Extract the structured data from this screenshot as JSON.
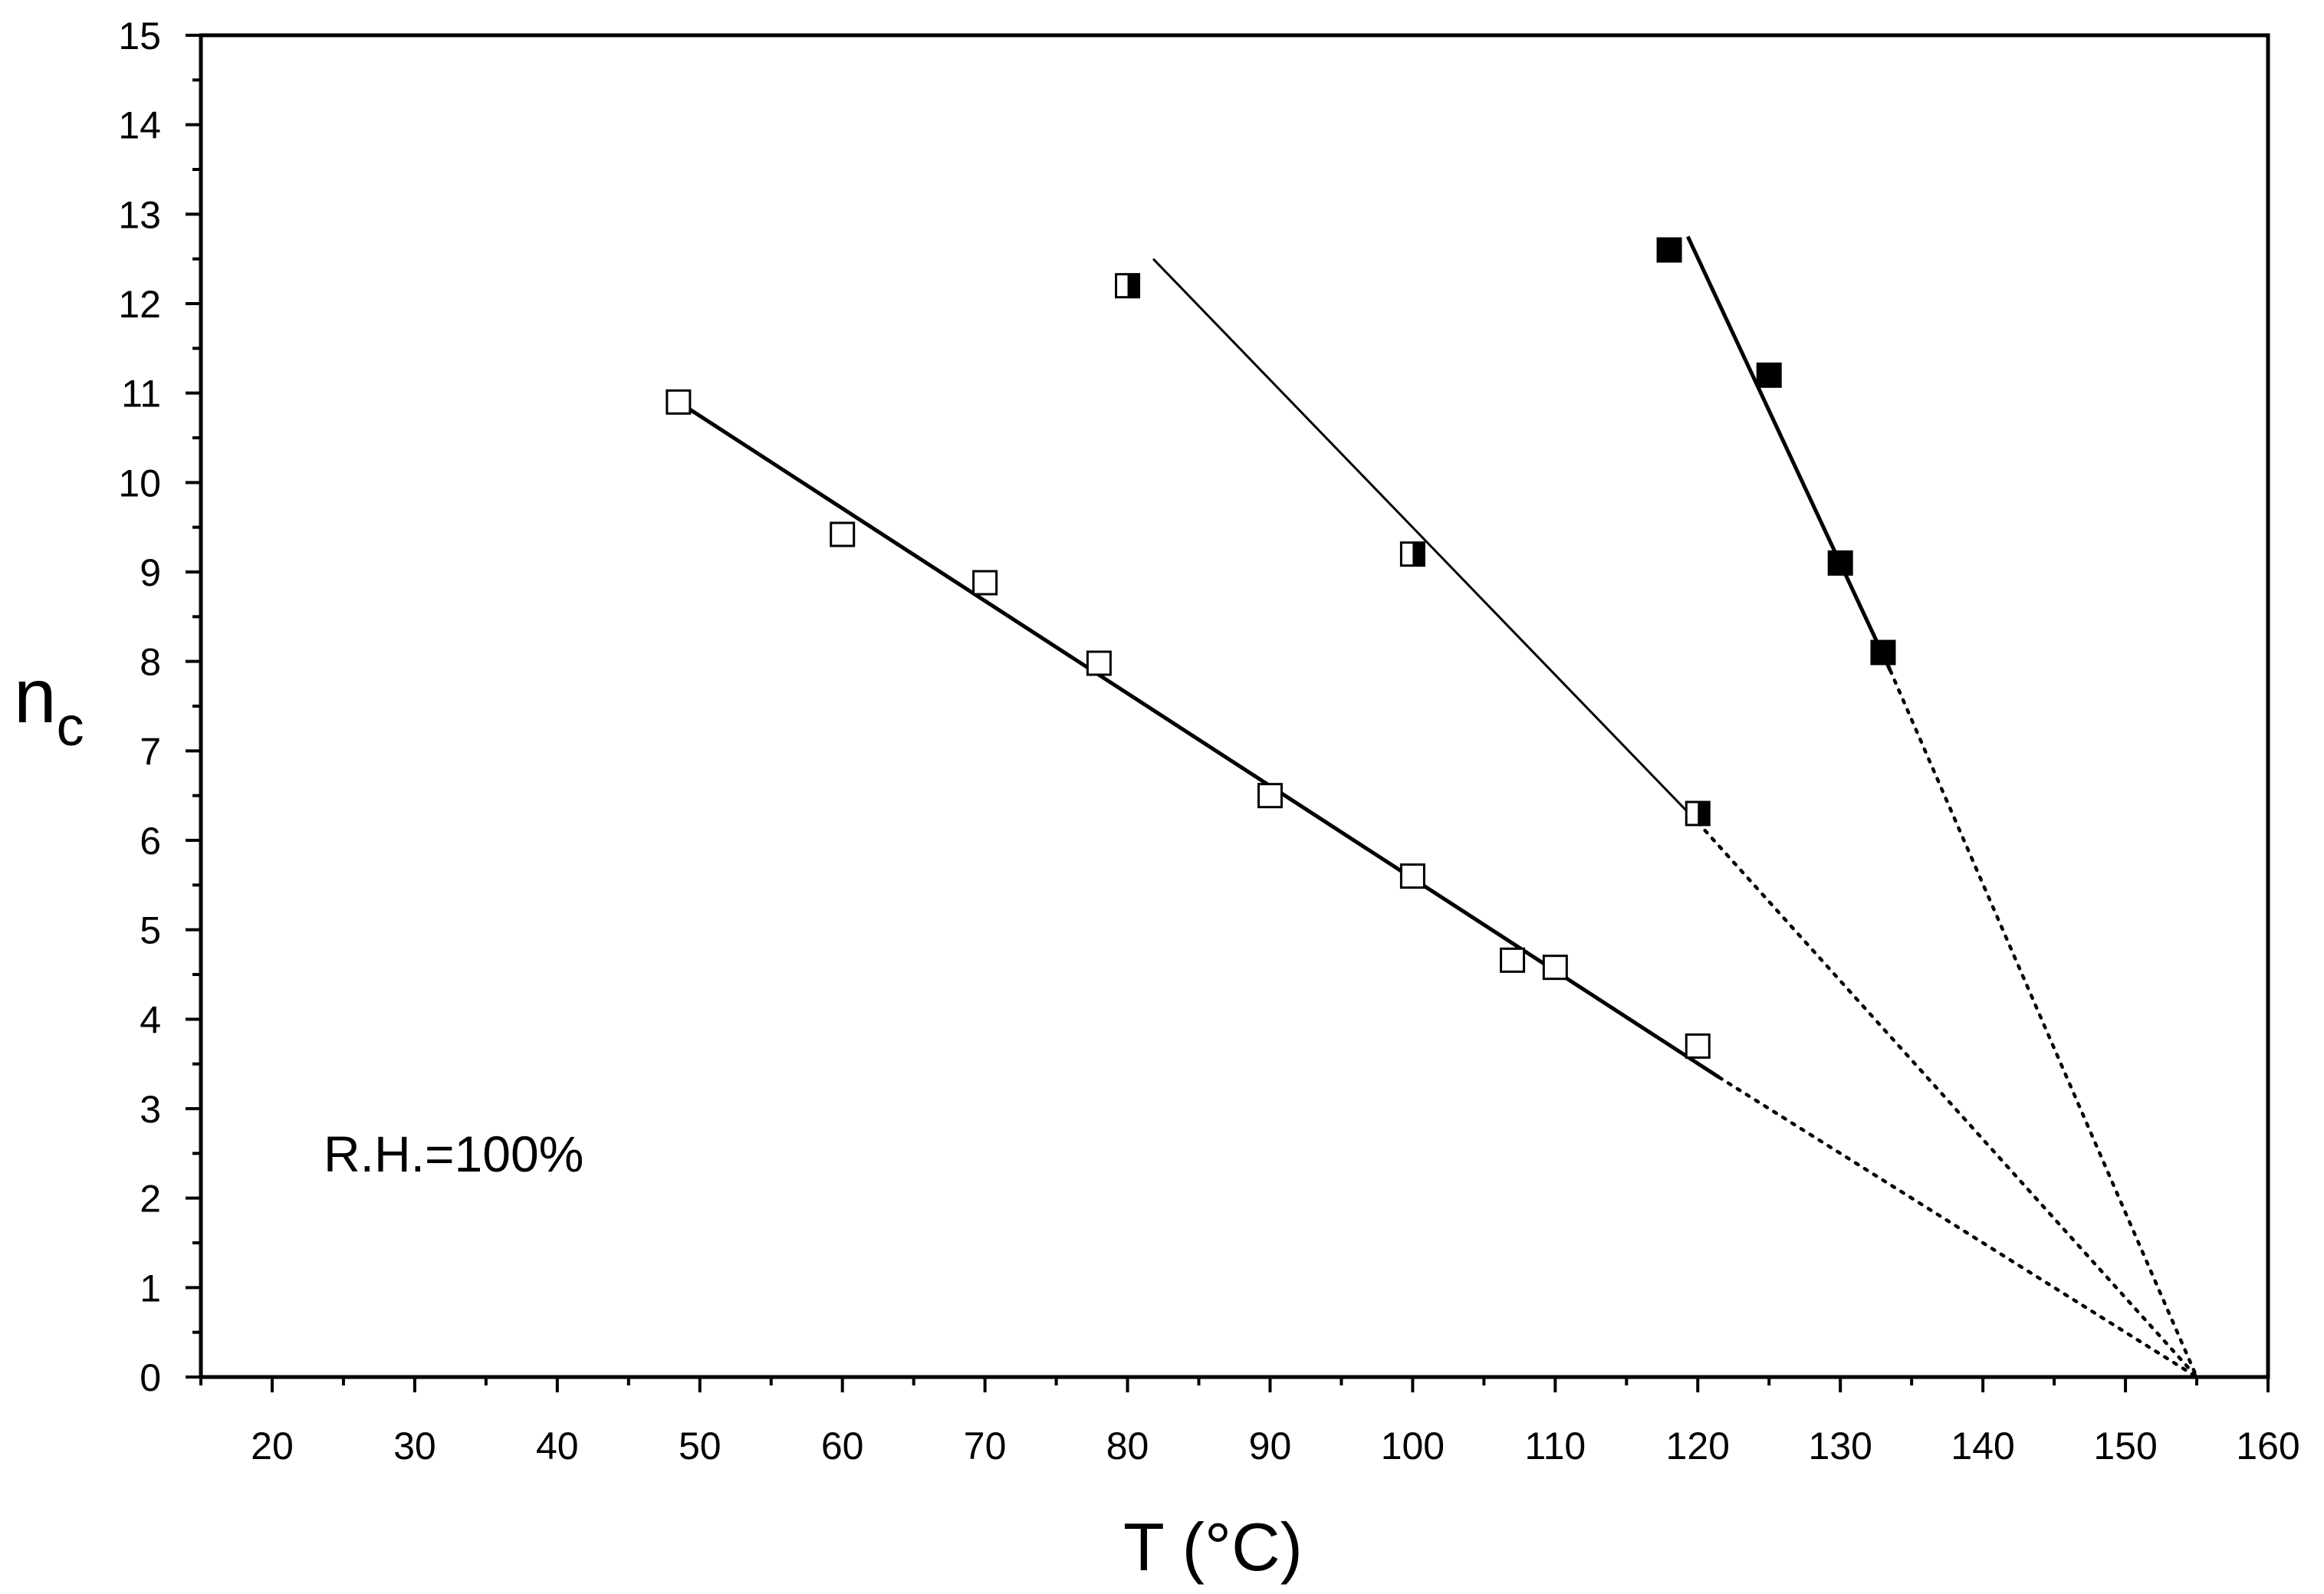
{
  "chart_data": {
    "type": "scatter",
    "title": "",
    "xlabel": "T (°C)",
    "ylabel_main": "n",
    "ylabel_sub": "c",
    "xlim": [
      15,
      160
    ],
    "ylim": [
      0,
      15
    ],
    "xticks": [
      20,
      30,
      40,
      50,
      60,
      70,
      80,
      90,
      100,
      110,
      120,
      130,
      140,
      150,
      160
    ],
    "yticks": [
      0,
      1,
      2,
      3,
      4,
      5,
      6,
      7,
      8,
      9,
      10,
      11,
      12,
      13,
      14,
      15
    ],
    "annotation": "R.H.=100%",
    "series": [
      {
        "name": "open squares",
        "marker": "open-square",
        "x": [
          48.5,
          60,
          70,
          78,
          90,
          100,
          107,
          110,
          120
        ],
        "y": [
          10.9,
          9.42,
          8.88,
          7.98,
          6.5,
          5.6,
          4.66,
          4.58,
          3.7
        ],
        "fit_solid": [
          [
            48.5,
            10.9
          ],
          [
            121.5,
            3.35
          ]
        ],
        "fit_dotted": [
          [
            121.5,
            3.35
          ],
          [
            155,
            0
          ]
        ]
      },
      {
        "name": "half-filled squares",
        "marker": "half-square",
        "x": [
          80,
          100,
          120
        ],
        "y": [
          12.2,
          9.2,
          6.3
        ],
        "fit_solid": [
          [
            81.8,
            12.5
          ],
          [
            120,
            6.2
          ]
        ],
        "fit_dotted": [
          [
            120,
            6.2
          ],
          [
            155,
            0
          ]
        ]
      },
      {
        "name": "filled squares",
        "marker": "filled-square",
        "x": [
          118,
          125,
          130,
          133
        ],
        "y": [
          12.6,
          11.2,
          9.1,
          8.1
        ],
        "fit_solid": [
          [
            119.3,
            12.75
          ],
          [
            133.5,
            7.9
          ]
        ],
        "fit_dotted": [
          [
            133.5,
            7.9
          ],
          [
            155,
            0
          ]
        ]
      }
    ]
  }
}
